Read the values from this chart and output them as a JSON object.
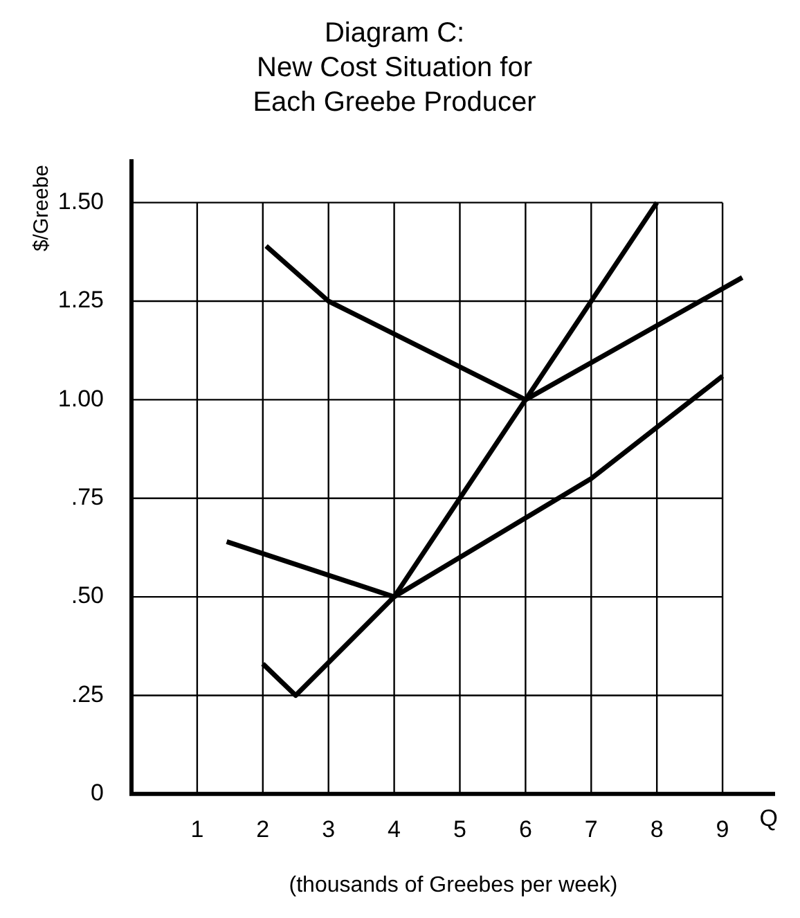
{
  "chart_data": {
    "type": "line",
    "title": "Diagram C:\nNew Cost Situation for\nEach Greebe Producer",
    "xlabel": "(thousands of Greebes per week)",
    "ylabel": "$/Greebe",
    "annotations": [
      "Q"
    ],
    "xlim": [
      0,
      9.8
    ],
    "ylim": [
      0,
      1.61
    ],
    "xticks": [
      1,
      2,
      3,
      4,
      5,
      6,
      7,
      8,
      9
    ],
    "yticks": [
      0,
      {
        "value": 0.25,
        "label": ".25"
      },
      {
        "value": 0.5,
        "label": ".50"
      },
      {
        "value": 0.75,
        "label": ".75"
      },
      {
        "value": 1,
        "label": "1.00"
      },
      {
        "value": 1.25,
        "label": "1.25"
      },
      {
        "value": 1.5,
        "label": "1.50"
      }
    ],
    "grid": true,
    "legend": false,
    "marker": "none",
    "line_style": "solid",
    "series": [
      {
        "color": "#000000",
        "x": [
          2.05,
          3,
          6,
          9.3
        ],
        "values": [
          1.39,
          1.25,
          1.0,
          1.31
        ]
      },
      {
        "color": "#000000",
        "x": [
          2,
          2.5,
          4,
          6,
          8
        ],
        "values": [
          0.33,
          0.25,
          0.5,
          1.0,
          1.5
        ]
      },
      {
        "color": "#000000",
        "x": [
          1.45,
          4,
          7,
          9
        ],
        "values": [
          0.64,
          0.5,
          0.8,
          1.06
        ]
      }
    ]
  }
}
